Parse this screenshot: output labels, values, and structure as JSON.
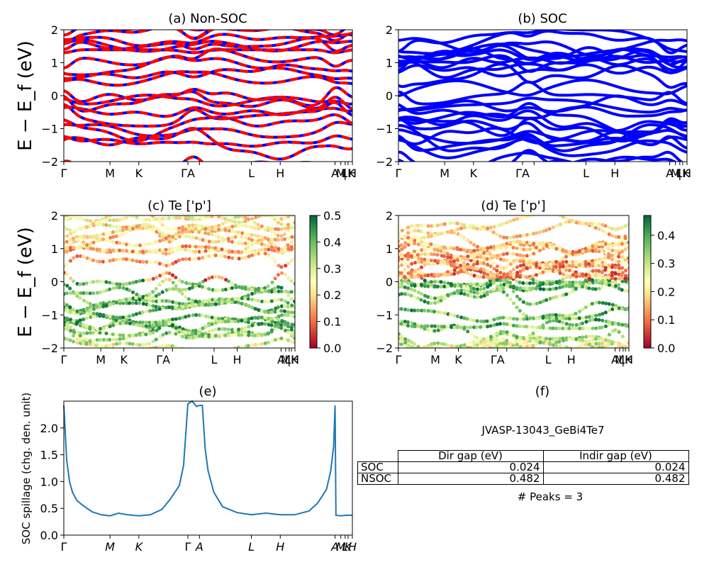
{
  "figure": {
    "shared_ylabel": "E − E_f (eV)",
    "spillage_ylabel": "SOC spillage (chg. den. unit)"
  },
  "panels": {
    "a": {
      "title": "(a) Non-SOC"
    },
    "b": {
      "title": "(b) SOC"
    },
    "c": {
      "title": "(c)  Te ['p']"
    },
    "d": {
      "title": "(d) Te ['p']"
    },
    "e": {
      "title": "(e)"
    },
    "f": {
      "title": "(f)"
    }
  },
  "kpath": {
    "labels": [
      "Γ",
      "M",
      "K",
      "Γ",
      "A",
      "L",
      "H",
      "A",
      "M",
      "L",
      "K",
      "H"
    ],
    "positions": [
      0,
      0.16,
      0.26,
      0.43,
      0.47,
      0.65,
      0.75,
      0.94,
      0.96,
      0.975,
      0.985,
      1.0
    ]
  },
  "kpath_bands": {
    "labels": [
      "Γ",
      "M",
      "K",
      "Γ",
      "A",
      "L",
      "H",
      "A",
      "M",
      "L",
      "K",
      "H"
    ],
    "display": [
      "Γ",
      "M",
      "K",
      "ΓA",
      "",
      "L",
      "H",
      "A",
      "M",
      "|",
      "LK",
      "H"
    ]
  },
  "summary": {
    "material": "JVASP-13043_GeBi4Te7",
    "header_dir": "Dir gap (eV)",
    "header_indir": "Indir gap (eV)",
    "rows": [
      {
        "label": "SOC",
        "dir": "0.024",
        "indir": "0.024"
      },
      {
        "label": "NSOC",
        "dir": "0.482",
        "indir": "0.482"
      }
    ],
    "peaks": "# Peaks = 3"
  },
  "colors": {
    "nonsoc_up": "#ff0000",
    "nonsoc_dn": "#0000ff",
    "soc": "#0000ff",
    "spillage": "#1f77b4"
  },
  "chart_data": [
    {
      "type": "line",
      "panel": "a",
      "title": "(a) Non-SOC",
      "ylabel": "E − E_f (eV)",
      "ylim": [
        -2,
        2
      ],
      "yticks": [
        -2,
        -1,
        0,
        1,
        2
      ],
      "note": "Band structure; approximately 18 band curves visible in window; dashed red/blue spin channels overlap",
      "valence_band_max_eV": -0.05,
      "conduction_band_min_eV": 0.45
    },
    {
      "type": "line",
      "panel": "b",
      "title": "(b) SOC",
      "ylabel": "",
      "ylim": [
        -2,
        2
      ],
      "yticks": [
        -2,
        -1,
        0,
        1,
        2
      ],
      "valence_band_max_eV": -0.02,
      "conduction_band_min_eV": 0.01
    },
    {
      "type": "scatter",
      "panel": "c",
      "title": "(c)  Te ['p']",
      "ylabel": "E − E_f (eV)",
      "ylim": [
        -2,
        2
      ],
      "yticks": [
        -2,
        -1,
        0,
        1,
        2
      ],
      "colorbar": {
        "cmap": "RdYlGn",
        "range": [
          0,
          0.5
        ],
        "ticks": [
          0.0,
          0.1,
          0.2,
          0.3,
          0.4,
          0.5
        ]
      }
    },
    {
      "type": "scatter",
      "panel": "d",
      "title": "(d) Te ['p']",
      "ylim": [
        -2,
        2
      ],
      "yticks": [
        -2,
        -1,
        0,
        1,
        2
      ],
      "colorbar": {
        "cmap": "RdYlGn",
        "range": [
          0,
          0.47
        ],
        "ticks": [
          0.0,
          0.1,
          0.2,
          0.3,
          0.4
        ]
      }
    },
    {
      "type": "line",
      "panel": "e",
      "title": "(e)",
      "ylabel": "SOC spillage (chg. den. unit)",
      "ylim": [
        0,
        2.5
      ],
      "yticks": [
        0.0,
        0.5,
        1.0,
        1.5,
        2.0
      ],
      "x": [
        0,
        0.01,
        0.02,
        0.03,
        0.045,
        0.06,
        0.08,
        0.1,
        0.13,
        0.16,
        0.19,
        0.22,
        0.26,
        0.3,
        0.34,
        0.37,
        0.4,
        0.415,
        0.43,
        0.445,
        0.46,
        0.47,
        0.48,
        0.49,
        0.5,
        0.52,
        0.55,
        0.6,
        0.65,
        0.7,
        0.75,
        0.8,
        0.85,
        0.88,
        0.91,
        0.925,
        0.935,
        0.94,
        0.943,
        0.96,
        0.98,
        1.0
      ],
      "y": [
        2.42,
        1.4,
        1.0,
        0.8,
        0.65,
        0.58,
        0.5,
        0.43,
        0.38,
        0.36,
        0.41,
        0.38,
        0.36,
        0.38,
        0.48,
        0.68,
        0.92,
        1.3,
        2.45,
        2.52,
        2.4,
        2.42,
        2.42,
        1.6,
        1.2,
        0.8,
        0.53,
        0.42,
        0.38,
        0.41,
        0.38,
        0.38,
        0.45,
        0.6,
        0.85,
        1.2,
        1.65,
        2.42,
        0.37,
        0.36,
        0.37,
        0.37
      ]
    }
  ]
}
